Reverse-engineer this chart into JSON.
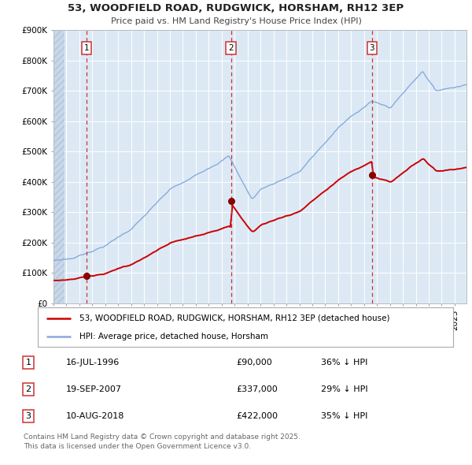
{
  "title1": "53, WOODFIELD ROAD, RUDGWICK, HORSHAM, RH12 3EP",
  "title2": "Price paid vs. HM Land Registry's House Price Index (HPI)",
  "ylim": [
    0,
    900000
  ],
  "yticks": [
    0,
    100000,
    200000,
    300000,
    400000,
    500000,
    600000,
    700000,
    800000,
    900000
  ],
  "ytick_labels": [
    "£0",
    "£100K",
    "£200K",
    "£300K",
    "£400K",
    "£500K",
    "£600K",
    "£700K",
    "£800K",
    "£900K"
  ],
  "background_color": "#ffffff",
  "plot_bg_color": "#dce9f5",
  "grid_color": "#ffffff",
  "sale_years_float": [
    1996.54,
    2007.72,
    2018.61
  ],
  "sale_prices": [
    90000,
    337000,
    422000
  ],
  "sale_labels": [
    "1",
    "2",
    "3"
  ],
  "legend_red": "53, WOODFIELD ROAD, RUDGWICK, HORSHAM, RH12 3EP (detached house)",
  "legend_blue": "HPI: Average price, detached house, Horsham",
  "table_entries": [
    {
      "num": "1",
      "date": "16-JUL-1996",
      "price": "£90,000",
      "hpi": "36% ↓ HPI"
    },
    {
      "num": "2",
      "date": "19-SEP-2007",
      "price": "£337,000",
      "hpi": "29% ↓ HPI"
    },
    {
      "num": "3",
      "date": "10-AUG-2018",
      "price": "£422,000",
      "hpi": "35% ↓ HPI"
    }
  ],
  "footer": "Contains HM Land Registry data © Crown copyright and database right 2025.\nThis data is licensed under the Open Government Licence v3.0.",
  "red_color": "#cc0000",
  "blue_color": "#88aadd",
  "marker_color": "#880000",
  "dash_color": "#cc3333"
}
